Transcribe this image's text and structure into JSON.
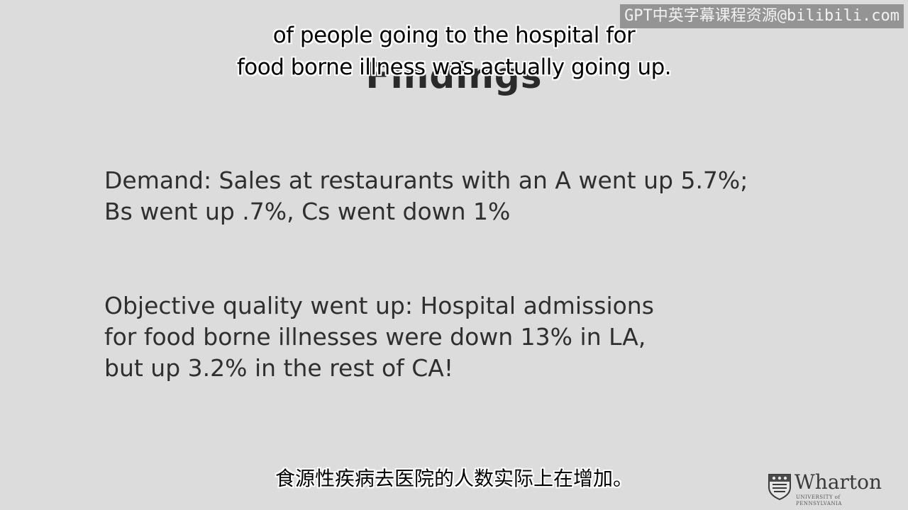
{
  "slide": {
    "title": "Findings",
    "paragraphs": [
      {
        "lines": [
          "Demand: Sales at restaurants with an A went up 5.7%;",
          "Bs went up .7%, Cs went down 1%"
        ]
      },
      {
        "lines": [
          "Objective quality went up: Hospital admissions",
          "for food borne illnesses were down 13% in LA,",
          "but up 3.2% in the rest of CA!"
        ]
      }
    ]
  },
  "subtitles": {
    "english_lines": [
      "of people going to the hospital for",
      "food borne illness was actually going up."
    ],
    "chinese": "食源性疾病去医院的人数实际上在增加。"
  },
  "watermark": {
    "text": "GPT中英字幕课程资源@bilibili.com"
  },
  "logo": {
    "name": "Wharton",
    "subtext": "UNIVERSITY of PENNSYLVANIA",
    "icon": "penn-shield-icon"
  },
  "colors": {
    "background": "#dcdcdc",
    "text": "#2f2f2f",
    "subtitle_outline": "#ffffff"
  }
}
